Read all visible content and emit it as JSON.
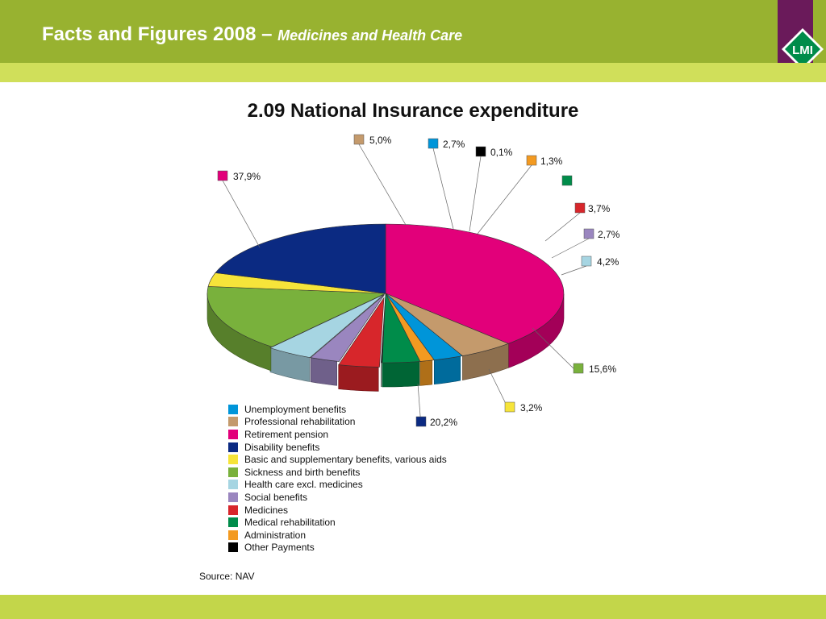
{
  "header": {
    "title_main": "Facts and Figures 2008 – ",
    "title_sub": "Medicines and Health Care",
    "logo_text": "LMI"
  },
  "source": "Source: NAV",
  "chart_data": {
    "type": "pie",
    "title": "2.09 National Insurance expenditure",
    "legend_position": "bottom-left",
    "slices": [
      {
        "name": "Retirement pension",
        "value": 37.9,
        "label": "37,9%",
        "color": "#e2007a"
      },
      {
        "name": "Professional rehabilitation",
        "value": 5.0,
        "label": "5,0%",
        "color": "#c49a6c"
      },
      {
        "name": "Unemployment benefits",
        "value": 2.7,
        "label": "2,7%",
        "color": "#0095d9"
      },
      {
        "name": "Administration",
        "value": 1.3,
        "label": "1,3%",
        "color": "#f39a21"
      },
      {
        "name": "Medical rehabilitation",
        "value": 3.4,
        "label": "",
        "color": "#008c4a"
      },
      {
        "name": "Other Payments",
        "value": 0.1,
        "label": "0,1%",
        "color": "#000000"
      },
      {
        "name": "Medicines",
        "value": 3.7,
        "label": "3,7%",
        "color": "#d7262b"
      },
      {
        "name": "Social benefits",
        "value": 2.7,
        "label": "2,7%",
        "color": "#9a86bf"
      },
      {
        "name": "Health care excl. medicines",
        "value": 4.2,
        "label": "4,2%",
        "color": "#a6d5e2"
      },
      {
        "name": "Sickness and birth benefits",
        "value": 15.6,
        "label": "15,6%",
        "color": "#79b13c"
      },
      {
        "name": "Basic and supplementary benefits, various aids",
        "value": 3.2,
        "label": "3,2%",
        "color": "#f6e43a"
      },
      {
        "name": "Disability benefits",
        "value": 20.2,
        "label": "20,2%",
        "color": "#0b2a82"
      }
    ],
    "legend": [
      {
        "name": "Unemployment benefits",
        "color": "#0095d9"
      },
      {
        "name": "Professional rehabilitation",
        "color": "#c49a6c"
      },
      {
        "name": "Retirement pension",
        "color": "#e2007a"
      },
      {
        "name": "Disability benefits",
        "color": "#0b2a82"
      },
      {
        "name": "Basic and supplementary benefits, various aids",
        "color": "#f6e43a"
      },
      {
        "name": "Sickness and birth benefits",
        "color": "#79b13c"
      },
      {
        "name": "Health care excl. medicines",
        "color": "#a6d5e2"
      },
      {
        "name": "Social benefits",
        "color": "#9a86bf"
      },
      {
        "name": "Medicines",
        "color": "#d7262b"
      },
      {
        "name": "Medical rehabilitation",
        "color": "#008c4a"
      },
      {
        "name": "Administration",
        "color": "#f39a21"
      },
      {
        "name": "Other Payments",
        "color": "#000000"
      }
    ]
  }
}
